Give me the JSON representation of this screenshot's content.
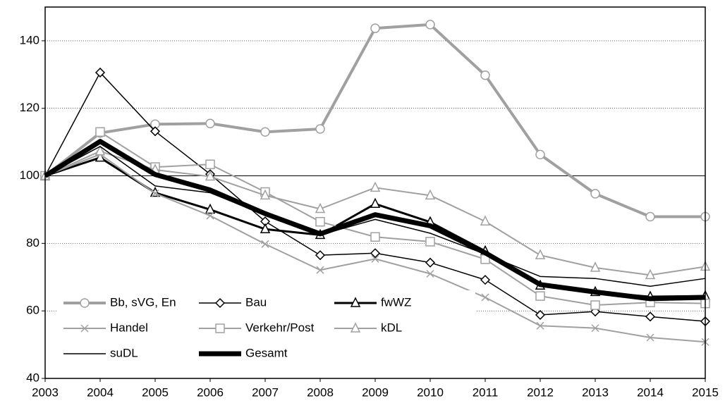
{
  "chart_data": {
    "type": "line",
    "x": [
      2003,
      2004,
      2005,
      2006,
      2007,
      2008,
      2009,
      2010,
      2011,
      2012,
      2013,
      2014,
      2015
    ],
    "xlim": [
      2003,
      2015
    ],
    "xticks": [
      2003,
      2004,
      2005,
      2006,
      2007,
      2008,
      2009,
      2010,
      2011,
      2012,
      2013,
      2014,
      2015
    ],
    "ylim": [
      40,
      150
    ],
    "yticks": [
      40,
      60,
      80,
      100,
      120,
      140
    ],
    "grid": true,
    "hline": 100,
    "legend": "lower left",
    "series": [
      {
        "name": "Bb, sVG, En",
        "color": "#a0a0a0",
        "width": 4,
        "marker": "circle",
        "values": [
          100,
          112.7,
          115.3,
          115.5,
          113,
          113.9,
          143.7,
          144.8,
          129.8,
          106.3,
          94.7,
          87.9,
          87.9
        ]
      },
      {
        "name": "Bau",
        "color": "#000000",
        "width": 1.5,
        "marker": "diamond",
        "values": [
          100,
          130.6,
          113.2,
          100.5,
          86.5,
          76.5,
          77.1,
          74.3,
          69.2,
          58.8,
          59.8,
          58.3,
          56.9
        ]
      },
      {
        "name": "fwWZ",
        "color": "#000000",
        "width": 3,
        "marker": "triangle",
        "values": [
          100,
          105.4,
          95,
          90,
          84.2,
          82.5,
          91.7,
          86.3,
          77.7,
          67.5,
          65.6,
          64.2,
          64.4
        ]
      },
      {
        "name": "Handel",
        "color": "#a0a0a0",
        "width": 2,
        "marker": "x",
        "values": [
          100,
          106.4,
          94.8,
          88.2,
          79.8,
          72.1,
          75.4,
          71,
          64,
          55.6,
          54.9,
          52.1,
          50.8
        ]
      },
      {
        "name": "Verkehr/Post",
        "color": "#a0a0a0",
        "width": 2,
        "marker": "square",
        "values": [
          100,
          113,
          102.6,
          103.4,
          95.2,
          86.4,
          81.9,
          80.5,
          75.3,
          64.4,
          61.7,
          62.5,
          62.2
        ]
      },
      {
        "name": "kDL",
        "color": "#a0a0a0",
        "width": 2,
        "marker": "triangle",
        "values": [
          100,
          107.3,
          101.8,
          99.8,
          94.2,
          90.2,
          96.5,
          94.2,
          86.5,
          76.5,
          72.8,
          70.6,
          73.1
        ]
      },
      {
        "name": "suDL",
        "color": "#000000",
        "width": 1.5,
        "marker": "none",
        "values": [
          100,
          108.7,
          97,
          95,
          88.4,
          82.5,
          87.1,
          83,
          76.8,
          70.2,
          69.6,
          67.3,
          69.6
        ]
      },
      {
        "name": "Gesamt",
        "color": "#000000",
        "width": 7,
        "marker": "none",
        "values": [
          100,
          110.2,
          100.4,
          95.8,
          88.8,
          82.8,
          88.5,
          85.2,
          77.2,
          67.8,
          65.6,
          63.6,
          64
        ]
      }
    ]
  }
}
